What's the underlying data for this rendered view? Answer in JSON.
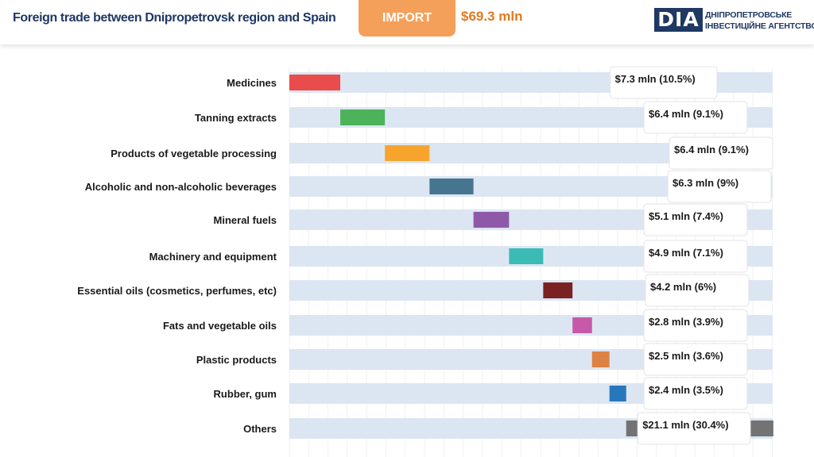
{
  "header": {
    "title": "Foreign trade between Dnipropetrovsk region and Spain",
    "flow_label": "IMPORT",
    "total": "$69.3 mln",
    "logo": {
      "abbr": "DIA",
      "line1": "ДНІПРОПЕТРОВСЬКЕ",
      "line2": "ІНВЕСТИЦІЙНЕ АГЕНТСТВО"
    }
  },
  "colors": {
    "accent_orange": "#f5a05a",
    "brand_navy": "#1f3864",
    "track": "#dce6f2"
  },
  "chart_data": {
    "type": "bar",
    "orientation": "horizontal-waterfall",
    "categories": [
      "Medicines",
      "Tanning extracts",
      "Products of vegetable processing",
      "Alcoholic and non-alcoholic beverages",
      "Mineral fuels",
      "Machinery and equipment",
      "Essential oils (cosmetics, perfumes, etc)",
      "Fats and vegetable oils",
      "Plastic products",
      "Rubber, gum",
      "Others"
    ],
    "values": [
      7.3,
      6.4,
      6.4,
      6.3,
      5.1,
      4.9,
      4.2,
      2.8,
      2.5,
      2.4,
      21.1
    ],
    "shares": [
      10.5,
      9.1,
      9.1,
      9,
      7.4,
      7.1,
      6,
      3.9,
      3.6,
      3.5,
      30.4
    ],
    "labels": [
      "$7.3 mln (10.5%)",
      "$6.4 mln (9.1%)",
      "$6.4 mln (9.1%)",
      "$6.3 mln (9%)",
      "$5.1 mln (7.4%)",
      "$4.9 mln (7.1%)",
      "$4.2 mln (6%)",
      "$2.8 mln (3.9%)",
      "$2.5 mln (3.6%)",
      "$2.4 mln (3.5%)",
      "$21.1 mln (30.4%)"
    ],
    "bar_colors": [
      "#e84c4c",
      "#4cb35a",
      "#f7a42c",
      "#45758f",
      "#8e5aa8",
      "#3cbab5",
      "#7a2222",
      "#c659a8",
      "#de8243",
      "#2777bd",
      "#737373"
    ],
    "unit": "$ mln",
    "xlim": [
      0,
      69.3
    ],
    "grid": true
  }
}
